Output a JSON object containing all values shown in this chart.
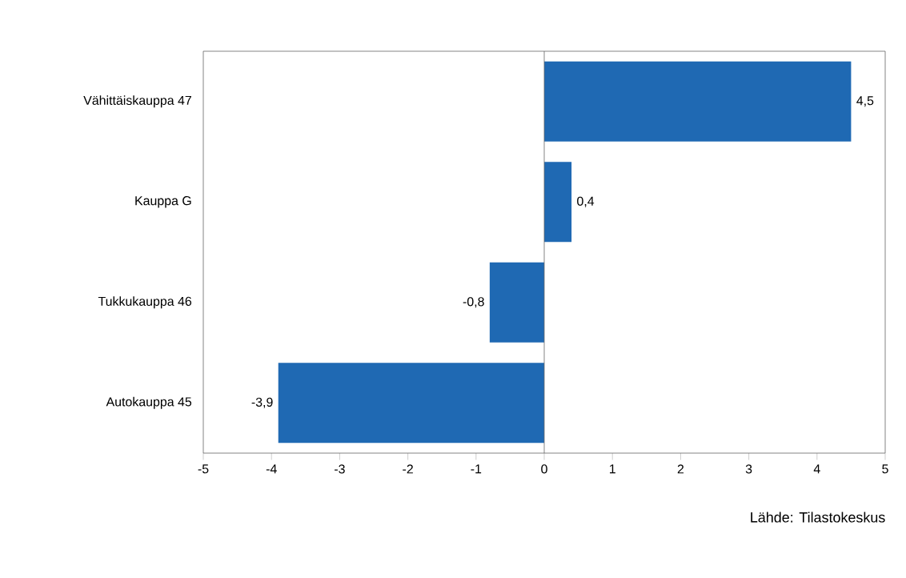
{
  "chart_data": {
    "type": "bar",
    "orientation": "horizontal",
    "categories": [
      "Vähittäiskauppa 47",
      "Kauppa G",
      "Tukkukauppa  46",
      "Autokauppa 45"
    ],
    "values": [
      4.5,
      0.4,
      -0.8,
      -3.9
    ],
    "value_labels": [
      "4,5",
      "0,4",
      "-0,8",
      "-3,9"
    ],
    "color": "#1f69b3",
    "xlim": [
      -5,
      5
    ],
    "xticks": [
      -5,
      -4,
      -3,
      -2,
      -1,
      0,
      1,
      2,
      3,
      4,
      5
    ],
    "annotations": [
      "Lähde: Tilastokeskus"
    ]
  }
}
